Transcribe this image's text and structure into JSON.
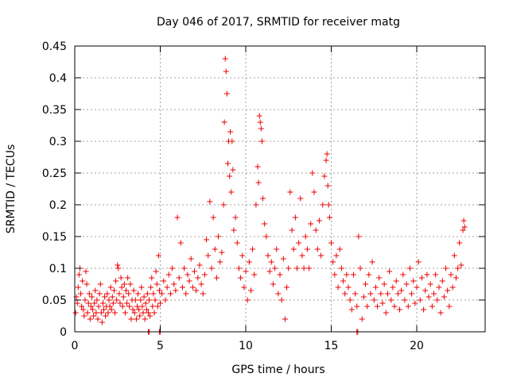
{
  "chart_data": {
    "type": "scatter",
    "title": "Day 046 of 2017, SRMTID for receiver matg",
    "xlabel": "GPS time / hours",
    "ylabel": "SRMTID / TECUs",
    "xlim": [
      0,
      24
    ],
    "ylim": [
      0,
      0.45
    ],
    "xticks": [
      0,
      5,
      10,
      15,
      20
    ],
    "xtick_labels": [
      "0",
      "5",
      "10",
      "15",
      "20"
    ],
    "yticks": [
      0,
      0.05,
      0.1,
      0.15,
      0.2,
      0.25,
      0.3,
      0.35,
      0.4,
      0.45
    ],
    "ytick_labels": [
      "0",
      "0.05",
      "0.1",
      "0.15",
      "0.2",
      "0.25",
      "0.3",
      "0.35",
      "0.4",
      "0.45"
    ],
    "grid": true,
    "marker": "+",
    "color": "#ee0000",
    "series": [
      {
        "name": "SRMTID",
        "points": [
          [
            0.05,
            0.03
          ],
          [
            0.1,
            0.055
          ],
          [
            0.15,
            0.045
          ],
          [
            0.2,
            0.07
          ],
          [
            0.25,
            0.09
          ],
          [
            0.3,
            0.1
          ],
          [
            0.35,
            0.06
          ],
          [
            0.4,
            0.04
          ],
          [
            0.45,
            0.08
          ],
          [
            0.5,
            0.035
          ],
          [
            0.55,
            0.025
          ],
          [
            0.6,
            0.05
          ],
          [
            0.65,
            0.095
          ],
          [
            0.7,
            0.075
          ],
          [
            0.75,
            0.03
          ],
          [
            0.8,
            0.045
          ],
          [
            0.85,
            0.06
          ],
          [
            0.9,
            0.02
          ],
          [
            0.95,
            0.04
          ],
          [
            1.0,
            0.055
          ],
          [
            1.05,
            0.035
          ],
          [
            1.1,
            0.025
          ],
          [
            1.15,
            0.045
          ],
          [
            1.2,
            0.065
          ],
          [
            1.25,
            0.03
          ],
          [
            1.3,
            0.05
          ],
          [
            1.35,
            0.02
          ],
          [
            1.4,
            0.04
          ],
          [
            1.45,
            0.06
          ],
          [
            1.5,
            0.075
          ],
          [
            1.55,
            0.03
          ],
          [
            1.6,
            0.015
          ],
          [
            1.65,
            0.045
          ],
          [
            1.7,
            0.035
          ],
          [
            1.75,
            0.055
          ],
          [
            1.8,
            0.025
          ],
          [
            1.85,
            0.04
          ],
          [
            1.9,
            0.06
          ],
          [
            1.95,
            0.03
          ],
          [
            2.0,
            0.05
          ],
          [
            2.05,
            0.04
          ],
          [
            2.1,
            0.07
          ],
          [
            2.15,
            0.035
          ],
          [
            2.2,
            0.055
          ],
          [
            2.25,
            0.045
          ],
          [
            2.3,
            0.065
          ],
          [
            2.35,
            0.03
          ],
          [
            2.4,
            0.08
          ],
          [
            2.45,
            0.05
          ],
          [
            2.5,
            0.105
          ],
          [
            2.55,
            0.1
          ],
          [
            2.6,
            0.06
          ],
          [
            2.65,
            0.045
          ],
          [
            2.7,
            0.085
          ],
          [
            2.75,
            0.07
          ],
          [
            2.8,
            0.04
          ],
          [
            2.85,
            0.055
          ],
          [
            2.9,
            0.075
          ],
          [
            2.95,
            0.03
          ],
          [
            3.0,
            0.065
          ],
          [
            3.05,
            0.045
          ],
          [
            3.1,
            0.085
          ],
          [
            3.15,
            0.06
          ],
          [
            3.2,
            0.04
          ],
          [
            3.25,
            0.075
          ],
          [
            3.3,
            0.02
          ],
          [
            3.35,
            0.05
          ],
          [
            3.4,
            0.035
          ],
          [
            3.45,
            0.065
          ],
          [
            3.5,
            0.03
          ],
          [
            3.55,
            0.05
          ],
          [
            3.6,
            0.02
          ],
          [
            3.65,
            0.04
          ],
          [
            3.7,
            0.06
          ],
          [
            3.75,
            0.035
          ],
          [
            3.8,
            0.025
          ],
          [
            3.85,
            0.05
          ],
          [
            3.9,
            0.07
          ],
          [
            3.95,
            0.04
          ],
          [
            4.0,
            0.03
          ],
          [
            4.05,
            0.055
          ],
          [
            4.1,
            0.02
          ],
          [
            4.15,
            0.045
          ],
          [
            4.2,
            0.035
          ],
          [
            4.25,
            0.06
          ],
          [
            4.3,
            0.03
          ],
          [
            4.35,
            0.05
          ],
          [
            4.4,
            0.025
          ],
          [
            4.45,
            0.07
          ],
          [
            4.5,
            0.085
          ],
          [
            4.55,
            0.04
          ],
          [
            4.6,
            0.06
          ],
          [
            4.65,
            0.03
          ],
          [
            4.7,
            0.05
          ],
          [
            4.75,
            0.095
          ],
          [
            4.8,
            0.075
          ],
          [
            4.85,
            0.04
          ],
          [
            4.9,
            0.12
          ],
          [
            4.95,
            0.065
          ],
          [
            5.0,
            0.045
          ],
          [
            5.1,
            0.06
          ],
          [
            5.2,
            0.08
          ],
          [
            5.3,
            0.05
          ],
          [
            5.4,
            0.07
          ],
          [
            5.5,
            0.09
          ],
          [
            5.6,
            0.06
          ],
          [
            5.7,
            0.1
          ],
          [
            5.8,
            0.075
          ],
          [
            5.9,
            0.065
          ],
          [
            6.0,
            0.18
          ],
          [
            6.1,
            0.085
          ],
          [
            6.2,
            0.14
          ],
          [
            6.3,
            0.07
          ],
          [
            6.4,
            0.1
          ],
          [
            6.5,
            0.06
          ],
          [
            6.6,
            0.09
          ],
          [
            6.7,
            0.08
          ],
          [
            6.8,
            0.115
          ],
          [
            6.9,
            0.07
          ],
          [
            7.0,
            0.095
          ],
          [
            7.1,
            0.065
          ],
          [
            7.2,
            0.085
          ],
          [
            7.3,
            0.105
          ],
          [
            7.4,
            0.075
          ],
          [
            7.5,
            0.06
          ],
          [
            7.6,
            0.09
          ],
          [
            7.7,
            0.145
          ],
          [
            7.8,
            0.12
          ],
          [
            7.9,
            0.205
          ],
          [
            8.0,
            0.1
          ],
          [
            8.1,
            0.18
          ],
          [
            8.2,
            0.13
          ],
          [
            8.3,
            0.085
          ],
          [
            8.4,
            0.15
          ],
          [
            8.5,
            0.11
          ],
          [
            8.6,
            0.125
          ],
          [
            8.7,
            0.2
          ],
          [
            8.75,
            0.33
          ],
          [
            8.8,
            0.43
          ],
          [
            8.85,
            0.41
          ],
          [
            8.9,
            0.375
          ],
          [
            8.95,
            0.265
          ],
          [
            9.0,
            0.3
          ],
          [
            9.05,
            0.245
          ],
          [
            9.1,
            0.315
          ],
          [
            9.15,
            0.22
          ],
          [
            9.2,
            0.3
          ],
          [
            9.25,
            0.255
          ],
          [
            9.3,
            0.16
          ],
          [
            9.4,
            0.18
          ],
          [
            9.5,
            0.14
          ],
          [
            9.6,
            0.1
          ],
          [
            9.7,
            0.085
          ],
          [
            9.8,
            0.12
          ],
          [
            9.9,
            0.07
          ],
          [
            10.0,
            0.095
          ],
          [
            10.1,
            0.05
          ],
          [
            10.2,
            0.11
          ],
          [
            10.3,
            0.065
          ],
          [
            10.4,
            0.13
          ],
          [
            10.5,
            0.09
          ],
          [
            10.6,
            0.2
          ],
          [
            10.7,
            0.26
          ],
          [
            10.75,
            0.235
          ],
          [
            10.8,
            0.34
          ],
          [
            10.85,
            0.33
          ],
          [
            10.9,
            0.32
          ],
          [
            10.95,
            0.3
          ],
          [
            11.0,
            0.21
          ],
          [
            11.1,
            0.17
          ],
          [
            11.2,
            0.15
          ],
          [
            11.3,
            0.12
          ],
          [
            11.4,
            0.095
          ],
          [
            11.5,
            0.11
          ],
          [
            11.6,
            0.075
          ],
          [
            11.7,
            0.1
          ],
          [
            11.8,
            0.13
          ],
          [
            11.9,
            0.06
          ],
          [
            12.0,
            0.09
          ],
          [
            12.1,
            0.05
          ],
          [
            12.2,
            0.115
          ],
          [
            12.3,
            0.02
          ],
          [
            12.4,
            0.07
          ],
          [
            12.5,
            0.1
          ],
          [
            12.6,
            0.22
          ],
          [
            12.7,
            0.16
          ],
          [
            12.8,
            0.13
          ],
          [
            12.9,
            0.18
          ],
          [
            13.0,
            0.1
          ],
          [
            13.1,
            0.14
          ],
          [
            13.2,
            0.21
          ],
          [
            13.3,
            0.12
          ],
          [
            13.4,
            0.1
          ],
          [
            13.5,
            0.15
          ],
          [
            13.6,
            0.13
          ],
          [
            13.7,
            0.1
          ],
          [
            13.8,
            0.17
          ],
          [
            13.9,
            0.25
          ],
          [
            14.0,
            0.22
          ],
          [
            14.1,
            0.16
          ],
          [
            14.2,
            0.13
          ],
          [
            14.3,
            0.175
          ],
          [
            14.4,
            0.12
          ],
          [
            14.5,
            0.2
          ],
          [
            14.6,
            0.245
          ],
          [
            14.7,
            0.27
          ],
          [
            14.75,
            0.28
          ],
          [
            14.8,
            0.23
          ],
          [
            14.85,
            0.2
          ],
          [
            14.9,
            0.18
          ],
          [
            15.0,
            0.14
          ],
          [
            15.1,
            0.11
          ],
          [
            15.2,
            0.09
          ],
          [
            15.3,
            0.12
          ],
          [
            15.4,
            0.07
          ],
          [
            15.5,
            0.13
          ],
          [
            15.6,
            0.1
          ],
          [
            15.7,
            0.08
          ],
          [
            15.8,
            0.06
          ],
          [
            15.9,
            0.09
          ],
          [
            16.0,
            0.07
          ],
          [
            16.1,
            0.05
          ],
          [
            16.2,
            0.035
          ],
          [
            16.3,
            0.09
          ],
          [
            16.4,
            0.06
          ],
          [
            16.5,
            0.04
          ],
          [
            16.6,
            0.15
          ],
          [
            16.7,
            0.1
          ],
          [
            16.8,
            0.02
          ],
          [
            16.9,
            0.055
          ],
          [
            17.0,
            0.075
          ],
          [
            17.1,
            0.04
          ],
          [
            17.2,
            0.09
          ],
          [
            17.3,
            0.06
          ],
          [
            17.4,
            0.11
          ],
          [
            17.5,
            0.05
          ],
          [
            17.6,
            0.07
          ],
          [
            17.7,
            0.04
          ],
          [
            17.8,
            0.085
          ],
          [
            17.9,
            0.06
          ],
          [
            18.0,
            0.045
          ],
          [
            18.1,
            0.075
          ],
          [
            18.2,
            0.03
          ],
          [
            18.3,
            0.06
          ],
          [
            18.4,
            0.095
          ],
          [
            18.5,
            0.05
          ],
          [
            18.6,
            0.07
          ],
          [
            18.7,
            0.04
          ],
          [
            18.8,
            0.08
          ],
          [
            18.9,
            0.06
          ],
          [
            19.0,
            0.035
          ],
          [
            19.1,
            0.065
          ],
          [
            19.2,
            0.09
          ],
          [
            19.3,
            0.05
          ],
          [
            19.4,
            0.075
          ],
          [
            19.5,
            0.04
          ],
          [
            19.6,
            0.1
          ],
          [
            19.7,
            0.06
          ],
          [
            19.8,
            0.08
          ],
          [
            19.9,
            0.045
          ],
          [
            20.0,
            0.07
          ],
          [
            20.1,
            0.11
          ],
          [
            20.2,
            0.05
          ],
          [
            20.3,
            0.085
          ],
          [
            20.4,
            0.035
          ],
          [
            20.5,
            0.065
          ],
          [
            20.6,
            0.09
          ],
          [
            20.7,
            0.055
          ],
          [
            20.8,
            0.075
          ],
          [
            20.9,
            0.04
          ],
          [
            21.0,
            0.06
          ],
          [
            21.1,
            0.09
          ],
          [
            21.2,
            0.05
          ],
          [
            21.3,
            0.07
          ],
          [
            21.4,
            0.03
          ],
          [
            21.5,
            0.08
          ],
          [
            21.6,
            0.055
          ],
          [
            21.7,
            0.1
          ],
          [
            21.8,
            0.065
          ],
          [
            21.9,
            0.04
          ],
          [
            22.0,
            0.09
          ],
          [
            22.1,
            0.07
          ],
          [
            22.2,
            0.12
          ],
          [
            22.3,
            0.085
          ],
          [
            22.4,
            0.1
          ],
          [
            22.5,
            0.14
          ],
          [
            22.6,
            0.105
          ],
          [
            22.7,
            0.16
          ],
          [
            22.75,
            0.175
          ],
          [
            22.8,
            0.165
          ],
          [
            4.3,
            0.0
          ],
          [
            4.35,
            0.0
          ],
          [
            4.95,
            0.0
          ],
          [
            5.0,
            0.0
          ],
          [
            16.5,
            0.0
          ],
          [
            16.55,
            0.0
          ]
        ]
      }
    ]
  }
}
